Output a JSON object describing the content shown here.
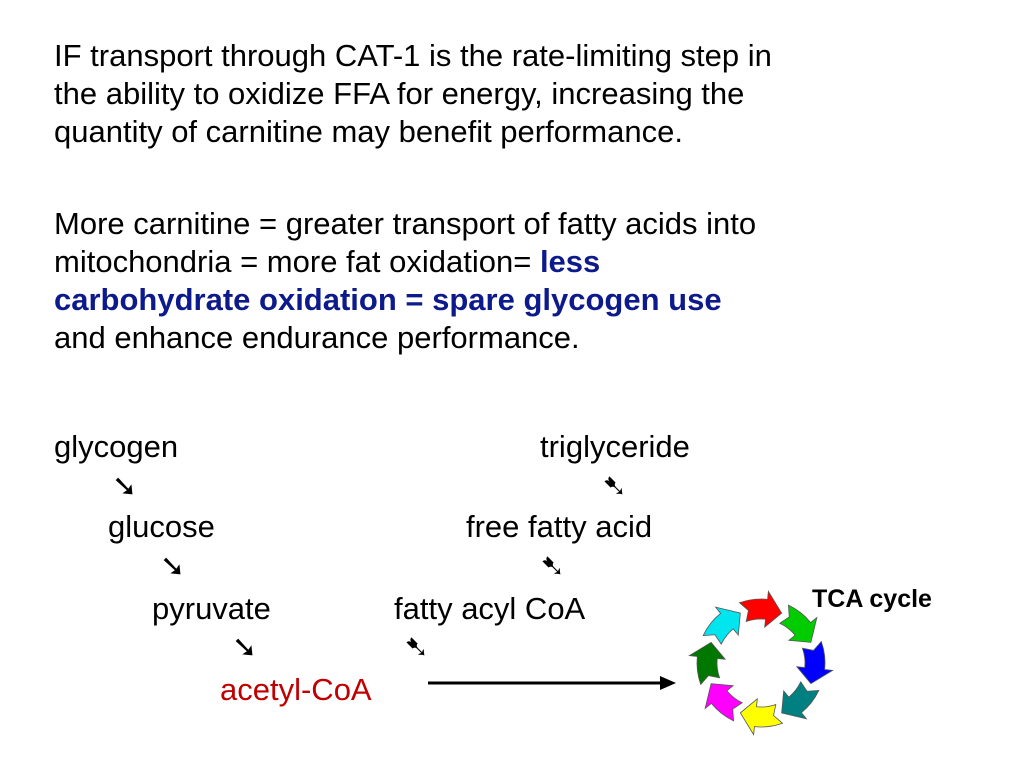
{
  "paragraph1": {
    "lines": [
      "IF transport through CAT-1 is the rate-limiting step in",
      "the ability to oxidize FFA for energy, increasing the",
      "quantity of carnitine may benefit performance."
    ]
  },
  "paragraph2": {
    "line1": "More carnitine = greater transport of fatty acids into",
    "line2_plain": "mitochondria = more fat oxidation= ",
    "line2_emphasis": "less",
    "line3_emphasis": "carbohydrate oxidation = spare glycogen use",
    "line4": "and enhance endurance performance.",
    "emphasis_color": "#0d1a8c"
  },
  "pathway": {
    "glycogen": "glycogen",
    "triglyceride": "triglyceride",
    "glucose": "glucose",
    "free_fatty_acid": "free fatty acid",
    "pyruvate": "pyruvate",
    "fatty_acyl_coa": "fatty acyl CoA",
    "acetyl_coa": "acetyl-CoA",
    "arrow_down_right": "➘",
    "arrow_down_left": "➷",
    "acetyl_color": "#c00000"
  },
  "tca": {
    "label": "TCA cycle",
    "segment_colors": [
      "#ff0000",
      "#00cc00",
      "#0000ff",
      "#008080",
      "#ffff00",
      "#ff00ff",
      "#007700",
      "#00e5ee"
    ]
  }
}
